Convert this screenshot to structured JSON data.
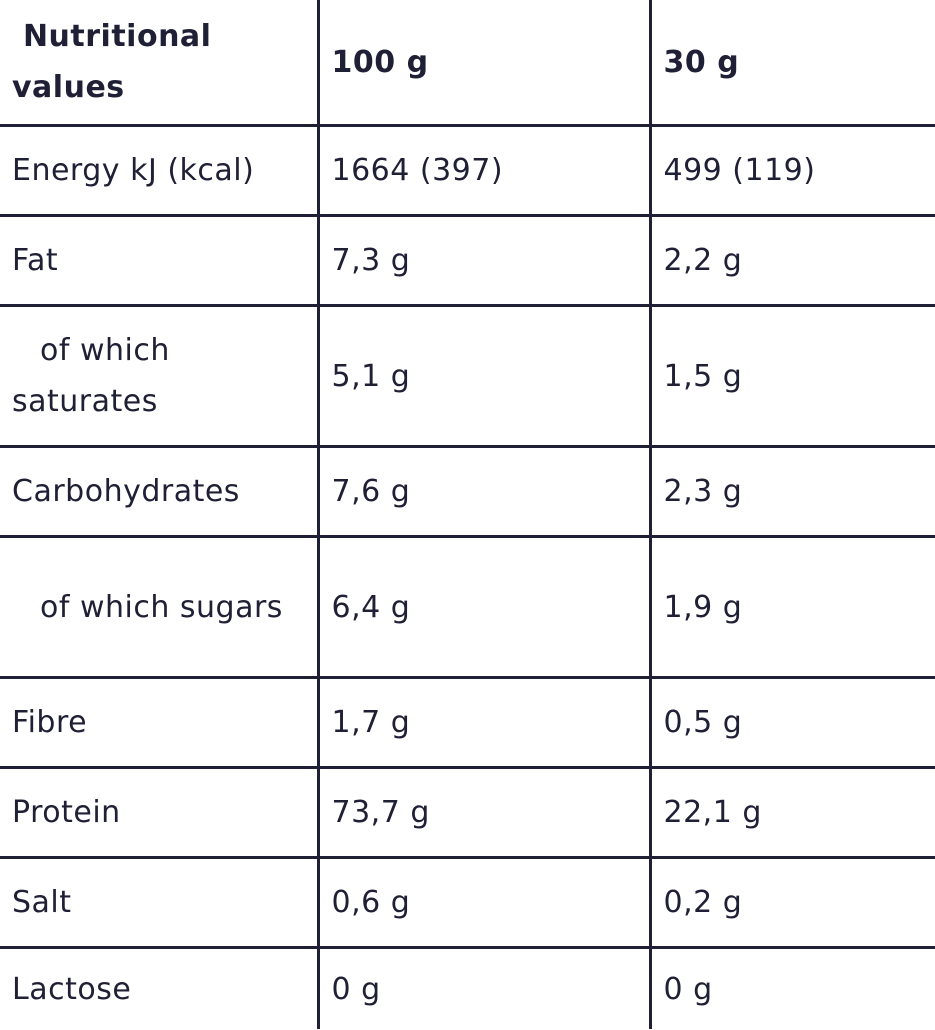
{
  "table": {
    "headers": [
      " Nutritional values",
      "100 g",
      "30 g"
    ],
    "rows": [
      {
        "nutrient": "Energy kJ (kcal)",
        "per_100g": "1664 (397)",
        "per_30g": "499 (119)"
      },
      {
        "nutrient": "Fat",
        "per_100g": "7,3 g",
        "per_30g": "2,2 g"
      },
      {
        "nutrient": "of which saturates",
        "per_100g": "5,1 g",
        "per_30g": "1,5 g"
      },
      {
        "nutrient": "Carbohydrates",
        "per_100g": "7,6 g",
        "per_30g": "2,3 g"
      },
      {
        "nutrient": "of which sugars",
        "per_100g": "6,4 g",
        "per_30g": "1,9 g"
      },
      {
        "nutrient": "Fibre",
        "per_100g": "1,7 g",
        "per_30g": "0,5 g"
      },
      {
        "nutrient": "Protein",
        "per_100g": "73,7 g",
        "per_30g": "22,1 g"
      },
      {
        "nutrient": "Salt",
        "per_100g": "0,6 g",
        "per_30g": "0,2 g"
      },
      {
        "nutrient": "Lactose",
        "per_100g": "0 g",
        "per_30g": "0 g"
      }
    ]
  },
  "colors": {
    "text": "#1f1f35",
    "border": "#1f1f35",
    "background": "#ffffff"
  }
}
